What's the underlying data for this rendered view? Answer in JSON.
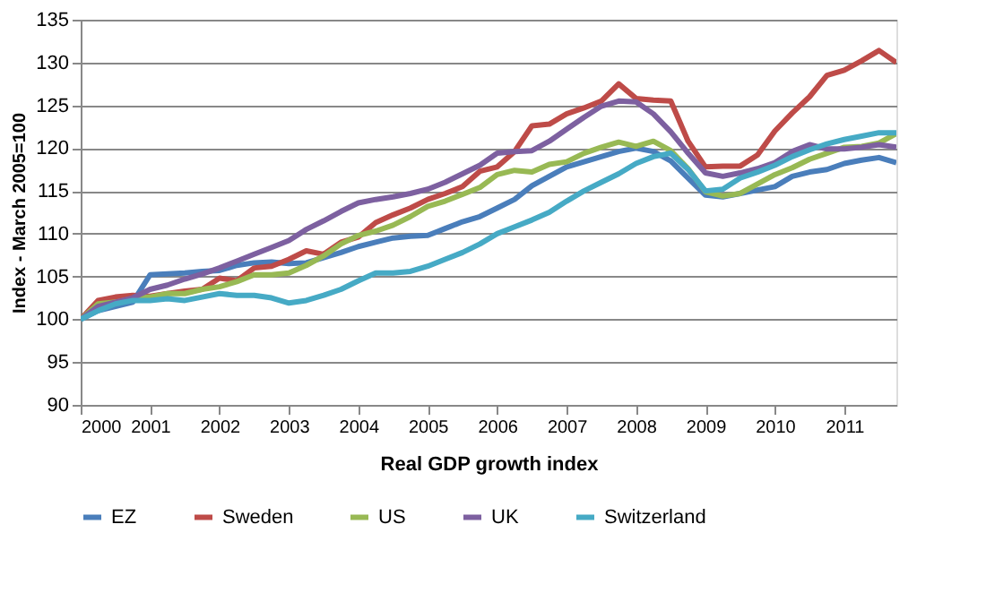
{
  "chart_data": {
    "type": "line",
    "xlabel": "Real GDP growth index",
    "ylabel": "Index - March 2005=100",
    "x": [
      2000,
      2000.25,
      2000.5,
      2000.75,
      2001,
      2001.25,
      2001.5,
      2001.75,
      2002,
      2002.25,
      2002.5,
      2002.75,
      2003,
      2003.25,
      2003.5,
      2003.75,
      2004,
      2004.25,
      2004.5,
      2004.75,
      2005,
      2005.25,
      2005.5,
      2005.75,
      2006,
      2006.25,
      2006.5,
      2006.75,
      2007,
      2007.25,
      2007.5,
      2007.75,
      2008,
      2008.25,
      2008.5,
      2008.75,
      2009,
      2009.25,
      2009.5,
      2009.75,
      2010,
      2010.25,
      2010.5,
      2010.75,
      2011,
      2011.25,
      2011.5,
      2011.75
    ],
    "series": [
      {
        "name": "EZ",
        "color": "#4a7ebb",
        "values": [
          100,
          101,
          101.5,
          102,
          105.2,
          105.3,
          105.4,
          105.6,
          105.7,
          106.3,
          106.6,
          106.7,
          106.5,
          106.6,
          107.2,
          107.8,
          108.5,
          109,
          109.5,
          109.7,
          109.8,
          110.6,
          111.4,
          112,
          113,
          114,
          115.6,
          116.7,
          117.8,
          118.4,
          119,
          119.6,
          120,
          119.6,
          118.5,
          116.5,
          114.5,
          114.3,
          114.7,
          115.1,
          115.5,
          116.7,
          117.2,
          117.5,
          118.2,
          118.6,
          118.9,
          118.3
        ]
      },
      {
        "name": "Sweden",
        "color": "#be4b48",
        "values": [
          100,
          102.2,
          102.6,
          102.8,
          102.7,
          103,
          103.3,
          103.5,
          104.8,
          104.5,
          106,
          106.2,
          107,
          108,
          107.6,
          109,
          109.6,
          111.3,
          112.2,
          113,
          114,
          114.7,
          115.5,
          117.3,
          117.8,
          119.6,
          122.6,
          122.8,
          124,
          124.7,
          125.5,
          127.5,
          125.8,
          125.6,
          125.5,
          120.8,
          117.8,
          117.9,
          117.9,
          119.2,
          122,
          124.1,
          126,
          128.5,
          129.1,
          130.2,
          131.4,
          130
        ]
      },
      {
        "name": "US",
        "color": "#98b954",
        "values": [
          100,
          101.8,
          102,
          102.4,
          102.6,
          103,
          103,
          103.5,
          103.8,
          104.4,
          105.2,
          105.2,
          105.4,
          106.3,
          107.4,
          108.8,
          109.8,
          110.3,
          111,
          112,
          113.2,
          113.8,
          114.6,
          115.4,
          116.9,
          117.4,
          117.2,
          118.1,
          118.4,
          119.4,
          120.1,
          120.7,
          120.2,
          120.8,
          119.7,
          117.6,
          114.9,
          114.4,
          114.7,
          115.8,
          116.9,
          117.7,
          118.7,
          119.4,
          120.1,
          120.2,
          120.6,
          121.7
        ]
      },
      {
        "name": "UK",
        "color": "#7d60a0",
        "values": [
          100,
          101.5,
          102,
          102.5,
          103.5,
          104,
          104.7,
          105.3,
          106,
          106.8,
          107.6,
          108.4,
          109.2,
          110.5,
          111.5,
          112.6,
          113.6,
          114,
          114.3,
          114.7,
          115.2,
          116,
          117,
          118,
          119.4,
          119.6,
          119.7,
          120.8,
          122.2,
          123.6,
          124.9,
          125.5,
          125.4,
          124,
          121.9,
          119.4,
          117.1,
          116.7,
          117.1,
          117.6,
          118.3,
          119.6,
          120.4,
          119.9,
          119.9,
          120.1,
          120.4,
          120.1
        ]
      },
      {
        "name": "Switzerland",
        "color": "#46aac5",
        "values": [
          100,
          101,
          101.8,
          102.2,
          102.2,
          102.4,
          102.2,
          102.6,
          103,
          102.8,
          102.8,
          102.5,
          101.9,
          102.2,
          102.8,
          103.5,
          104.5,
          105.4,
          105.4,
          105.6,
          106.2,
          107,
          107.8,
          108.8,
          110,
          110.8,
          111.6,
          112.5,
          113.8,
          115,
          116,
          117,
          118.2,
          119,
          119.4,
          117.5,
          115,
          115.2,
          116.5,
          117.2,
          118,
          119,
          119.8,
          120.5,
          121,
          121.4,
          121.8,
          121.8
        ]
      }
    ],
    "xlim": [
      2000,
      2011.75
    ],
    "xticks": [
      2000,
      2001,
      2002,
      2003,
      2004,
      2005,
      2006,
      2007,
      2008,
      2009,
      2010,
      2011
    ],
    "ylim": [
      90,
      135
    ],
    "yticks": [
      90,
      95,
      100,
      105,
      110,
      115,
      120,
      125,
      130,
      135
    ],
    "grid": "y",
    "legend": "bottom",
    "marker": "none",
    "line_style": "solid"
  }
}
